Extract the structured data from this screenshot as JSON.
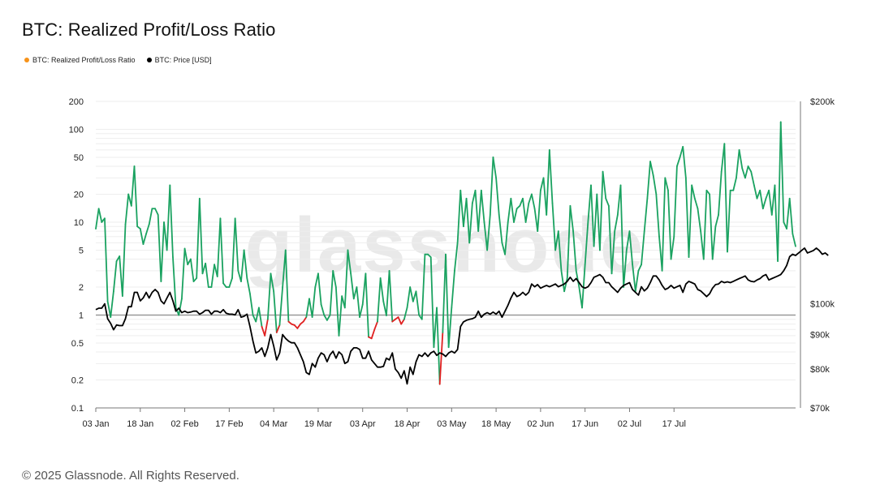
{
  "page": {
    "title": "BTC: Realized Profit/Loss Ratio",
    "footer": "© 2025 Glassnode. All Rights Reserved.",
    "watermark": "glassnode"
  },
  "legend": [
    {
      "label": "BTC: Realized Profit/Loss Ratio",
      "color": "#f7931a"
    },
    {
      "label": "BTC: Price [USD]",
      "color": "#000000"
    }
  ],
  "chart_data": {
    "type": "line",
    "title": "BTC: Realized Profit/Loss Ratio",
    "x_tick_labels": [
      "03 Jan",
      "18 Jan",
      "02 Feb",
      "17 Feb",
      "04 Mar",
      "19 Mar",
      "03 Apr",
      "18 Apr",
      "03 May",
      "18 May",
      "02 Jun",
      "17 Jun",
      "02 Jul",
      "17 Jul"
    ],
    "left_axis": {
      "scale": "log",
      "ylim": [
        0.1,
        200
      ],
      "ticks": [
        0.1,
        0.2,
        0.5,
        1,
        2,
        5,
        10,
        20,
        50,
        100,
        200
      ],
      "tick_labels": [
        "0.1",
        "0.2",
        "0.5",
        "1",
        "2",
        "5",
        "10",
        "20",
        "50",
        "100",
        "200"
      ]
    },
    "right_axis": {
      "scale": "log",
      "ylim": [
        70000,
        200000
      ],
      "ticks": [
        70000,
        80000,
        90000,
        100000,
        200000
      ],
      "tick_labels": [
        "$70k",
        "$80k",
        "$90k",
        "$100k",
        "$200k"
      ]
    },
    "reference_line": 1,
    "colors": {
      "profit": "#1aa260",
      "loss": "#e02020",
      "price": "#000000",
      "reference": "#999999"
    },
    "series": [
      {
        "name": "BTC: Realized Profit/Loss Ratio",
        "axis": "left",
        "values": [
          8.5,
          14,
          10,
          11,
          1.4,
          0.95,
          1.8,
          3.8,
          4.3,
          1.6,
          9.5,
          20,
          15,
          40,
          9,
          8.5,
          5.8,
          7.5,
          9.5,
          14,
          14,
          12,
          2.3,
          10,
          5,
          25,
          4.2,
          1.2,
          1,
          1.5,
          5.2,
          3.5,
          4,
          2.3,
          2.5,
          18,
          2.8,
          3.6,
          2,
          2,
          3.5,
          2.6,
          11,
          2.2,
          2,
          2,
          2.5,
          11,
          3,
          2.3,
          5,
          2.5,
          1.7,
          1,
          0.85,
          1.2,
          0.75,
          0.6,
          0.9,
          2.8,
          1.8,
          0.65,
          0.78,
          2,
          5,
          0.85,
          0.8,
          0.78,
          0.72,
          0.8,
          0.85,
          0.95,
          1.5,
          0.95,
          2,
          2.8,
          1.3,
          1,
          0.88,
          1,
          3,
          2,
          0.6,
          1.6,
          1.2,
          5,
          2.8,
          1.5,
          2,
          0.95,
          1.3,
          2.8,
          0.58,
          0.56,
          0.7,
          0.85,
          2.5,
          1.4,
          0.99,
          3,
          0.85,
          0.9,
          0.95,
          0.8,
          0.9,
          1.2,
          2,
          1.4,
          1.8,
          1,
          0.9,
          4.5,
          4.5,
          4.2,
          0.45,
          1.2,
          0.18,
          0.65,
          4.5,
          0.45,
          1.2,
          3,
          6,
          22,
          9,
          18,
          6,
          16,
          22,
          8,
          22,
          10,
          5,
          12,
          50,
          30,
          12,
          6,
          4.5,
          10,
          18,
          10,
          14,
          15,
          18,
          10,
          16,
          20,
          14,
          8,
          22,
          30,
          12,
          60,
          16,
          5,
          8,
          3,
          1.8,
          2.5,
          15,
          8,
          3,
          2,
          1.2,
          3.5,
          10,
          25,
          5.5,
          20,
          5,
          35,
          18,
          15,
          2.8,
          8,
          12,
          25,
          2,
          5,
          8,
          3.5,
          1.8,
          3,
          3.5,
          8,
          18,
          45,
          32,
          20,
          7,
          3,
          30,
          22,
          4,
          7,
          40,
          50,
          65,
          30,
          4.2,
          25,
          18,
          14,
          8,
          4,
          22,
          20,
          4,
          9,
          12,
          35,
          70,
          4.8,
          22,
          22,
          30,
          60,
          38,
          30,
          40,
          35,
          25,
          18,
          22,
          14,
          18,
          22,
          12,
          25,
          3.8,
          120,
          10,
          8.5,
          18,
          7.5,
          5.5
        ]
      },
      {
        "name": "BTC: Price [USD]",
        "axis": "right",
        "values": [
          98000,
          98500,
          98500,
          100000,
          95000,
          93500,
          91500,
          93000,
          92800,
          92800,
          95000,
          99000,
          99000,
          104000,
          104000,
          101000,
          102000,
          104000,
          102000,
          104000,
          105000,
          104000,
          101000,
          100000,
          102000,
          104000,
          101000,
          97500,
          98500,
          97000,
          97500,
          97000,
          97200,
          97500,
          97500,
          96500,
          97000,
          97800,
          97800,
          96500,
          97500,
          97500,
          97000,
          98000,
          96800,
          96500,
          96500,
          96300,
          98000,
          95500,
          95800,
          96500,
          92500,
          88000,
          84500,
          85000,
          86000,
          83500,
          86000,
          90000,
          86500,
          82500,
          84500,
          90000,
          88800,
          88000,
          87500,
          87500,
          86000,
          84000,
          82000,
          79000,
          78500,
          81500,
          80500,
          83000,
          84500,
          84000,
          82000,
          84000,
          85000,
          83000,
          84800,
          84000,
          81500,
          82000,
          85000,
          86000,
          86000,
          85500,
          83000,
          83000,
          85000,
          82500,
          81500,
          80500,
          80500,
          80700,
          83000,
          82500,
          84500,
          80000,
          79000,
          77500,
          79500,
          76000,
          80500,
          78500,
          82000,
          84000,
          83500,
          84500,
          83500,
          84500,
          85000,
          83800,
          84500,
          84200,
          83500,
          84500,
          85000,
          84500,
          85500,
          92500,
          94000,
          94500,
          94800,
          95000,
          95500,
          97500,
          95500,
          96500,
          97000,
          96500,
          97200,
          96500,
          97500,
          95500,
          97500,
          99500,
          102000,
          104000,
          102500,
          103000,
          104000,
          103000,
          104000,
          107000,
          106000,
          106800,
          105500,
          106000,
          106500,
          106000,
          106500,
          107000,
          106000,
          106500,
          107000,
          108000,
          109500,
          108000,
          109000,
          107500,
          106000,
          105500,
          106000,
          107500,
          109500,
          110000,
          110500,
          109500,
          107500,
          107500,
          106000,
          105000,
          104000,
          105500,
          106500,
          107000,
          107500,
          105000,
          104000,
          103000,
          106000,
          104500,
          105500,
          107500,
          110000,
          110000,
          108500,
          106500,
          105000,
          105500,
          106500,
          105500,
          106000,
          106500,
          104000,
          107000,
          108000,
          107500,
          107000,
          105000,
          104500,
          103500,
          102500,
          103500,
          105500,
          106800,
          107000,
          108000,
          107500,
          107800,
          107500,
          108000,
          108500,
          109000,
          109500,
          110000,
          108500,
          108000,
          107800,
          108500,
          109000,
          110000,
          110500,
          108500,
          109000,
          109500,
          110000,
          110500,
          112000,
          114000,
          117500,
          118500,
          118000,
          119000,
          120000,
          121000,
          119000,
          119500,
          120000,
          121000,
          120000,
          118500,
          119000,
          118000
        ]
      }
    ]
  }
}
